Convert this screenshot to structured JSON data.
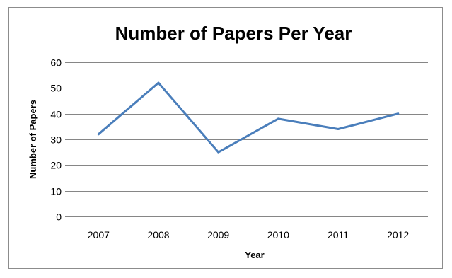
{
  "chart_data": {
    "type": "line",
    "title": "Number of Papers Per Year",
    "xlabel": "Year",
    "ylabel": "Number of Papers",
    "categories": [
      "2007",
      "2008",
      "2009",
      "2010",
      "2011",
      "2012"
    ],
    "series": [
      {
        "values": [
          32,
          52,
          25,
          38,
          34,
          40
        ],
        "color": "#4a7ebb"
      }
    ],
    "ylim": [
      0,
      60
    ],
    "yticks": [
      0,
      10,
      20,
      30,
      40,
      50,
      60
    ],
    "grid": true,
    "legend": "none"
  }
}
